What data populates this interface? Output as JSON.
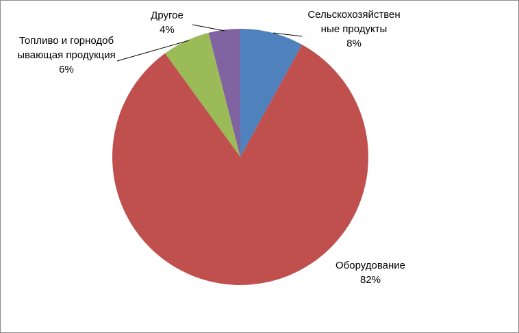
{
  "chart_data": {
    "type": "pie",
    "categories": [
      "Сельскохозяйственные продукты",
      "Оборудование",
      "Топливо и горнодобывающая продукция",
      "Другое"
    ],
    "values": [
      8,
      82,
      6,
      4
    ],
    "value_labels": [
      "8%",
      "82%",
      "6%",
      "4%"
    ],
    "colors": [
      "#4f81bd",
      "#c0504d",
      "#9bbb59",
      "#8064a2"
    ]
  }
}
